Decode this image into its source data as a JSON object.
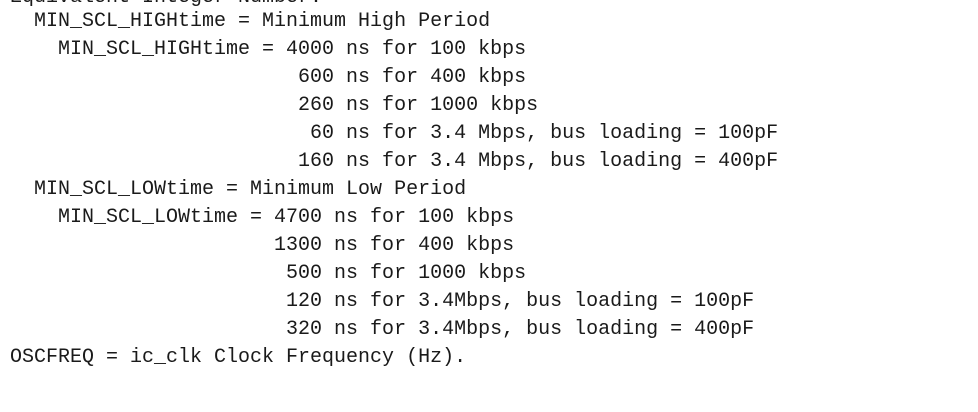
{
  "lines": [
    "Equivalent Integer Number:",
    "  MIN_SCL_HIGHtime = Minimum High Period",
    "    MIN_SCL_HIGHtime = 4000 ns for 100 kbps",
    "                        600 ns for 400 kbps",
    "                        260 ns for 1000 kbps",
    "                         60 ns for 3.4 Mbps, bus loading = 100pF",
    "                        160 ns for 3.4 Mbps, bus loading = 400pF",
    "  MIN_SCL_LOWtime = Minimum Low Period",
    "    MIN_SCL_LOWtime = 4700 ns for 100 kbps",
    "                      1300 ns for 400 kbps",
    "                       500 ns for 1000 kbps",
    "                       120 ns for 3.4Mbps, bus loading = 100pF",
    "                       320 ns for 3.4Mbps, bus loading = 400pF",
    "OSCFREQ = ic_clk Clock Frequency (Hz)."
  ]
}
